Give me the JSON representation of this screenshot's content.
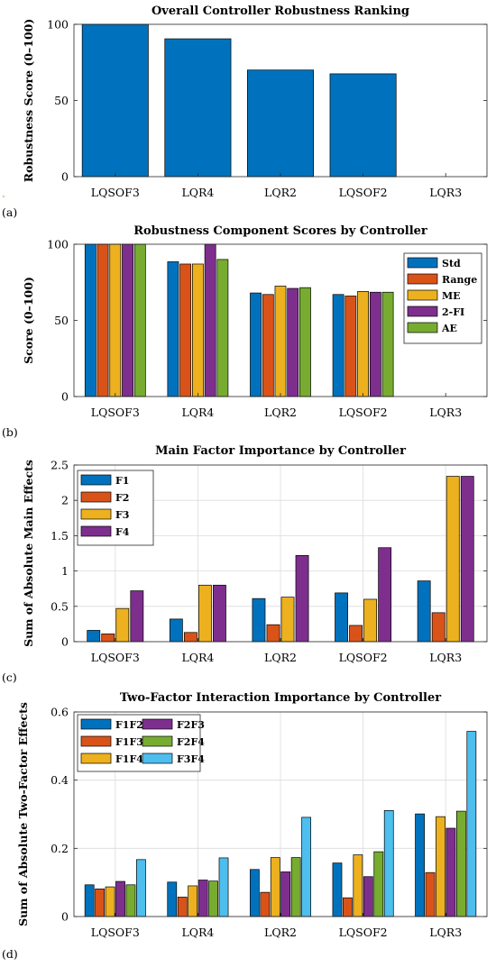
{
  "chart_data": [
    {
      "type": "bar",
      "panel_label": "(a)",
      "title": "Overall Controller Robustness Ranking",
      "ylabel": "Robustness Score (0–100)",
      "xlabel": "",
      "categories": [
        "LQSOF3",
        "LQR4",
        "LQR2",
        "LQSOF2",
        "LQR3"
      ],
      "values": [
        100,
        90.5,
        70,
        67.5,
        0
      ],
      "ylim": [
        0,
        100
      ],
      "yticks": [
        0,
        50,
        100
      ],
      "grid": false,
      "legend": null,
      "colors": [
        "#0072BD"
      ]
    },
    {
      "type": "bar",
      "panel_label": "(b)",
      "title": "Robustness Component Scores by Controller",
      "ylabel": "Score (0–100)",
      "xlabel": "",
      "categories": [
        "LQSOF3",
        "LQR4",
        "LQR2",
        "LQSOF2",
        "LQR3"
      ],
      "series": [
        {
          "name": "Std",
          "color": "#0072BD",
          "values": [
            100,
            88.5,
            68,
            67,
            0
          ]
        },
        {
          "name": "Range",
          "color": "#D95319",
          "values": [
            100,
            87,
            67,
            66,
            0
          ]
        },
        {
          "name": "ME",
          "color": "#EDB120",
          "values": [
            100,
            87,
            72.5,
            69,
            0
          ]
        },
        {
          "name": "2-FI",
          "color": "#7E2F8E",
          "values": [
            100,
            100,
            71,
            68.5,
            0
          ]
        },
        {
          "name": "AE",
          "color": "#77AC30",
          "values": [
            100,
            90,
            71.5,
            68.5,
            0
          ]
        }
      ],
      "ylim": [
        0,
        100
      ],
      "yticks": [
        0,
        50,
        100
      ],
      "grid": false,
      "legend": "top-right"
    },
    {
      "type": "bar",
      "panel_label": "(c)",
      "title": "Main Factor Importance by Controller",
      "ylabel": "Sum of Absolute Main Effects",
      "xlabel": "",
      "categories": [
        "LQSOF3",
        "LQR4",
        "LQR2",
        "LQSOF2",
        "LQR3"
      ],
      "series": [
        {
          "name": "F1",
          "color": "#0072BD",
          "values": [
            0.16,
            0.32,
            0.61,
            0.69,
            0.86
          ]
        },
        {
          "name": "F2",
          "color": "#D95319",
          "values": [
            0.11,
            0.13,
            0.24,
            0.23,
            0.41
          ]
        },
        {
          "name": "F3",
          "color": "#EDB120",
          "values": [
            0.47,
            0.8,
            0.63,
            0.6,
            2.34
          ]
        },
        {
          "name": "F4",
          "color": "#7E2F8E",
          "values": [
            0.72,
            0.8,
            1.22,
            1.33,
            2.34
          ]
        }
      ],
      "ylim": [
        0,
        2.5
      ],
      "yticks": [
        0,
        0.5,
        1,
        1.5,
        2,
        2.5
      ],
      "ytick_labels": [
        "0",
        "0.5",
        "1",
        "1.5",
        "2",
        "2.5"
      ],
      "grid": true,
      "legend": "top-left"
    },
    {
      "type": "bar",
      "panel_label": "(d)",
      "title": "Two-Factor Interaction Importance by Controller",
      "ylabel": "Sum of Absolute Two-Factor Effects",
      "xlabel": "",
      "categories": [
        "LQSOF3",
        "LQR4",
        "LQR2",
        "LQSOF2",
        "LQR3"
      ],
      "series": [
        {
          "name": "F1F2",
          "color": "#0072BD",
          "values": [
            0.093,
            0.101,
            0.138,
            0.157,
            0.301
          ]
        },
        {
          "name": "F1F3",
          "color": "#D95319",
          "values": [
            0.081,
            0.057,
            0.071,
            0.055,
            0.129
          ]
        },
        {
          "name": "F1F4",
          "color": "#EDB120",
          "values": [
            0.087,
            0.09,
            0.173,
            0.181,
            0.293
          ]
        },
        {
          "name": "F2F3",
          "color": "#7E2F8E",
          "values": [
            0.103,
            0.107,
            0.131,
            0.117,
            0.259
          ]
        },
        {
          "name": "F2F4",
          "color": "#77AC30",
          "values": [
            0.093,
            0.104,
            0.173,
            0.19,
            0.309
          ]
        },
        {
          "name": "F3F4",
          "color": "#4DBEEE",
          "values": [
            0.167,
            0.172,
            0.291,
            0.311,
            0.543
          ]
        }
      ],
      "ylim": [
        0,
        0.6
      ],
      "yticks": [
        0,
        0.2,
        0.4,
        0.6
      ],
      "ytick_labels": [
        "0",
        "0.2",
        "0.4",
        "0.6"
      ],
      "grid": true,
      "legend": "top-left"
    }
  ]
}
